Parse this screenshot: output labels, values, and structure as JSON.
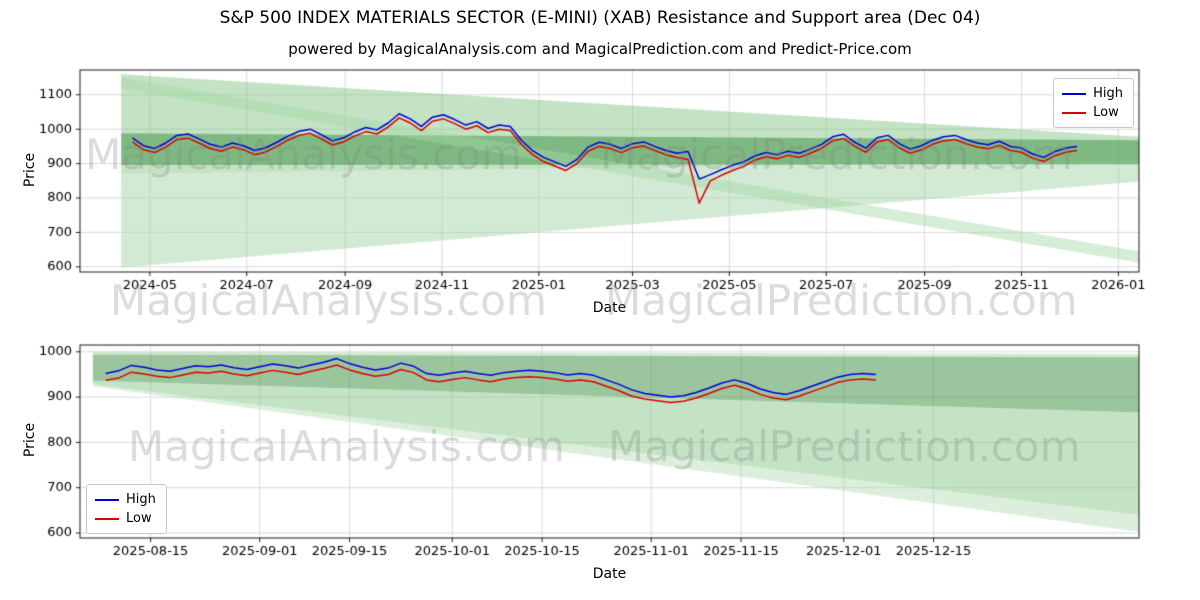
{
  "title": "S&P 500 INDEX MATERIALS SECTOR (E-MINI) (XAB) Resistance and Support area (Dec 04)",
  "subtitle": "powered by MagicalAnalysis.com and MagicalPrediction.com and Predict-Price.com",
  "watermarks": {
    "analysis": "MagicalAnalysis.com",
    "prediction": "MagicalPrediction.com"
  },
  "chart_data": [
    {
      "type": "line",
      "name": "long-range-price-chart",
      "ylabel": "Price",
      "xlabel": "Date",
      "x_range": [
        "2024-03-18",
        "2026-01-14"
      ],
      "y_range": [
        585,
        1172
      ],
      "y_ticks": [
        600,
        700,
        800,
        900,
        1000,
        1100
      ],
      "x_ticks": [
        {
          "t": "2024-05-01",
          "label": "2024-05"
        },
        {
          "t": "2024-07-01",
          "label": "2024-07"
        },
        {
          "t": "2024-09-01",
          "label": "2024-09"
        },
        {
          "t": "2024-11-01",
          "label": "2024-11"
        },
        {
          "t": "2025-01-01",
          "label": "2025-01"
        },
        {
          "t": "2025-03-01",
          "label": "2025-03"
        },
        {
          "t": "2025-05-01",
          "label": "2025-05"
        },
        {
          "t": "2025-07-01",
          "label": "2025-07"
        },
        {
          "t": "2025-09-01",
          "label": "2025-09"
        },
        {
          "t": "2025-11-01",
          "label": "2025-11"
        },
        {
          "t": "2026-01-01",
          "label": "2026-01"
        }
      ],
      "x_start": "2024-04-20",
      "x_step_days": 7,
      "legend_position": "top-right",
      "grid": true,
      "series": [
        {
          "name": "High",
          "color": "#0000dd",
          "values": [
            975,
            952,
            944,
            960,
            982,
            986,
            972,
            956,
            948,
            960,
            952,
            938,
            946,
            962,
            980,
            994,
            1000,
            984,
            966,
            975,
            992,
            1005,
            998,
            1018,
            1045,
            1030,
            1008,
            1035,
            1042,
            1028,
            1012,
            1022,
            1002,
            1012,
            1008,
            968,
            938,
            918,
            905,
            892,
            912,
            948,
            962,
            956,
            944,
            958,
            963,
            950,
            938,
            930,
            935,
            855,
            868,
            882,
            895,
            905,
            922,
            932,
            926,
            936,
            930,
            942,
            956,
            978,
            985,
            962,
            945,
            975,
            982,
            958,
            942,
            952,
            968,
            978,
            982,
            970,
            960,
            955,
            965,
            950,
            945,
            928,
            918,
            935,
            945,
            950
          ]
        },
        {
          "name": "Low",
          "color": "#dd0000",
          "values": [
            963,
            940,
            932,
            948,
            970,
            974,
            960,
            944,
            936,
            948,
            940,
            926,
            934,
            950,
            968,
            982,
            988,
            972,
            954,
            963,
            980,
            993,
            986,
            1006,
            1033,
            1018,
            996,
            1023,
            1030,
            1016,
            1000,
            1010,
            990,
            1000,
            996,
            956,
            926,
            906,
            893,
            880,
            900,
            936,
            950,
            944,
            932,
            946,
            951,
            938,
            926,
            918,
            912,
            785,
            850,
            866,
            880,
            892,
            910,
            920,
            914,
            924,
            918,
            930,
            944,
            966,
            973,
            950,
            933,
            963,
            970,
            946,
            930,
            940,
            956,
            966,
            970,
            958,
            948,
            943,
            953,
            938,
            933,
            916,
            906,
            923,
            933,
            938
          ]
        }
      ],
      "bands": [
        {
          "name": "resistance-upper-wedge",
          "color": "rgba(135,200,138,0.50)",
          "points": [
            [
              "2024-04-13",
              1160
            ],
            [
              "2026-01-14",
              978
            ],
            [
              "2026-01-14",
              906
            ],
            [
              "2024-04-13",
              870
            ]
          ]
        },
        {
          "name": "support-lower-wedge",
          "color": "rgba(165,214,167,0.50)",
          "points": [
            [
              "2024-04-13",
              870
            ],
            [
              "2026-01-14",
              906
            ],
            [
              "2026-01-14",
              848
            ],
            [
              "2024-04-13",
              598
            ]
          ]
        },
        {
          "name": "core-channel",
          "color": "rgba(72,152,76,0.55)",
          "points": [
            [
              "2024-04-13",
              988
            ],
            [
              "2026-01-14",
              968
            ],
            [
              "2026-01-14",
              898
            ],
            [
              "2024-04-13",
              896
            ]
          ]
        },
        {
          "name": "descending-fan-line",
          "color": "rgba(165,214,167,0.45)",
          "points": [
            [
              "2024-04-13",
              1150
            ],
            [
              "2026-01-14",
              645
            ],
            [
              "2026-01-14",
              612
            ],
            [
              "2024-04-13",
              1118
            ]
          ]
        }
      ]
    },
    {
      "type": "line",
      "name": "recent-detail-price-chart",
      "ylabel": "Price",
      "xlabel": "Date",
      "x_range": [
        "2025-08-04",
        "2026-01-16"
      ],
      "y_range": [
        589,
        1015
      ],
      "y_ticks": [
        600,
        700,
        800,
        900,
        1000
      ],
      "x_ticks": [
        {
          "t": "2025-08-15",
          "label": "2025-08-15"
        },
        {
          "t": "2025-09-01",
          "label": "2025-09-01"
        },
        {
          "t": "2025-09-15",
          "label": "2025-09-15"
        },
        {
          "t": "2025-10-01",
          "label": "2025-10-01"
        },
        {
          "t": "2025-10-15",
          "label": "2025-10-15"
        },
        {
          "t": "2025-11-01",
          "label": "2025-11-01"
        },
        {
          "t": "2025-11-15",
          "label": "2025-11-15"
        },
        {
          "t": "2025-12-01",
          "label": "2025-12-01"
        },
        {
          "t": "2025-12-15",
          "label": "2025-12-15"
        }
      ],
      "x_start": "2025-08-08",
      "x_step_days": 2,
      "legend_position": "bottom-left",
      "grid": true,
      "series": [
        {
          "name": "High",
          "color": "#0000dd",
          "values": [
            952,
            958,
            970,
            966,
            960,
            957,
            963,
            969,
            967,
            971,
            965,
            961,
            967,
            973,
            969,
            964,
            971,
            977,
            985,
            974,
            966,
            960,
            964,
            975,
            968,
            952,
            948,
            953,
            957,
            952,
            948,
            954,
            957,
            959,
            957,
            954,
            949,
            952,
            948,
            938,
            928,
            916,
            908,
            904,
            900,
            903,
            910,
            920,
            931,
            938,
            930,
            918,
            910,
            906,
            914,
            924,
            934,
            944,
            950,
            952,
            950
          ]
        },
        {
          "name": "Low",
          "color": "#dd0000",
          "values": [
            937,
            942,
            955,
            951,
            946,
            943,
            949,
            955,
            953,
            957,
            951,
            947,
            953,
            959,
            955,
            950,
            957,
            963,
            971,
            960,
            952,
            946,
            950,
            961,
            954,
            938,
            934,
            939,
            943,
            938,
            934,
            940,
            943,
            945,
            943,
            940,
            935,
            938,
            934,
            924,
            914,
            902,
            896,
            892,
            888,
            891,
            898,
            908,
            919,
            926,
            918,
            906,
            898,
            894,
            902,
            912,
            922,
            932,
            938,
            940,
            938
          ]
        }
      ],
      "bands": [
        {
          "name": "upper-light-sliver",
          "color": "rgba(165,214,167,0.50)",
          "points": [
            [
              "2025-08-06",
              1000
            ],
            [
              "2026-01-16",
              995
            ],
            [
              "2026-01-16",
              988
            ],
            [
              "2025-08-06",
              994
            ]
          ]
        },
        {
          "name": "core-channel",
          "color": "rgba(72,152,76,0.55)",
          "points": [
            [
              "2025-08-06",
              994
            ],
            [
              "2026-01-16",
              988
            ],
            [
              "2026-01-16",
              866
            ],
            [
              "2025-08-06",
              936
            ]
          ]
        },
        {
          "name": "support-expanding-wedge",
          "color": "rgba(135,200,138,0.50)",
          "points": [
            [
              "2025-08-06",
              936
            ],
            [
              "2026-01-16",
              866
            ],
            [
              "2026-01-16",
              640
            ],
            [
              "2025-08-06",
              928
            ]
          ]
        },
        {
          "name": "lower-light-wedge",
          "color": "rgba(165,214,167,0.40)",
          "points": [
            [
              "2025-08-06",
              928
            ],
            [
              "2026-01-16",
              640
            ],
            [
              "2026-01-16",
              602
            ],
            [
              "2025-08-06",
              924
            ]
          ]
        }
      ]
    }
  ]
}
